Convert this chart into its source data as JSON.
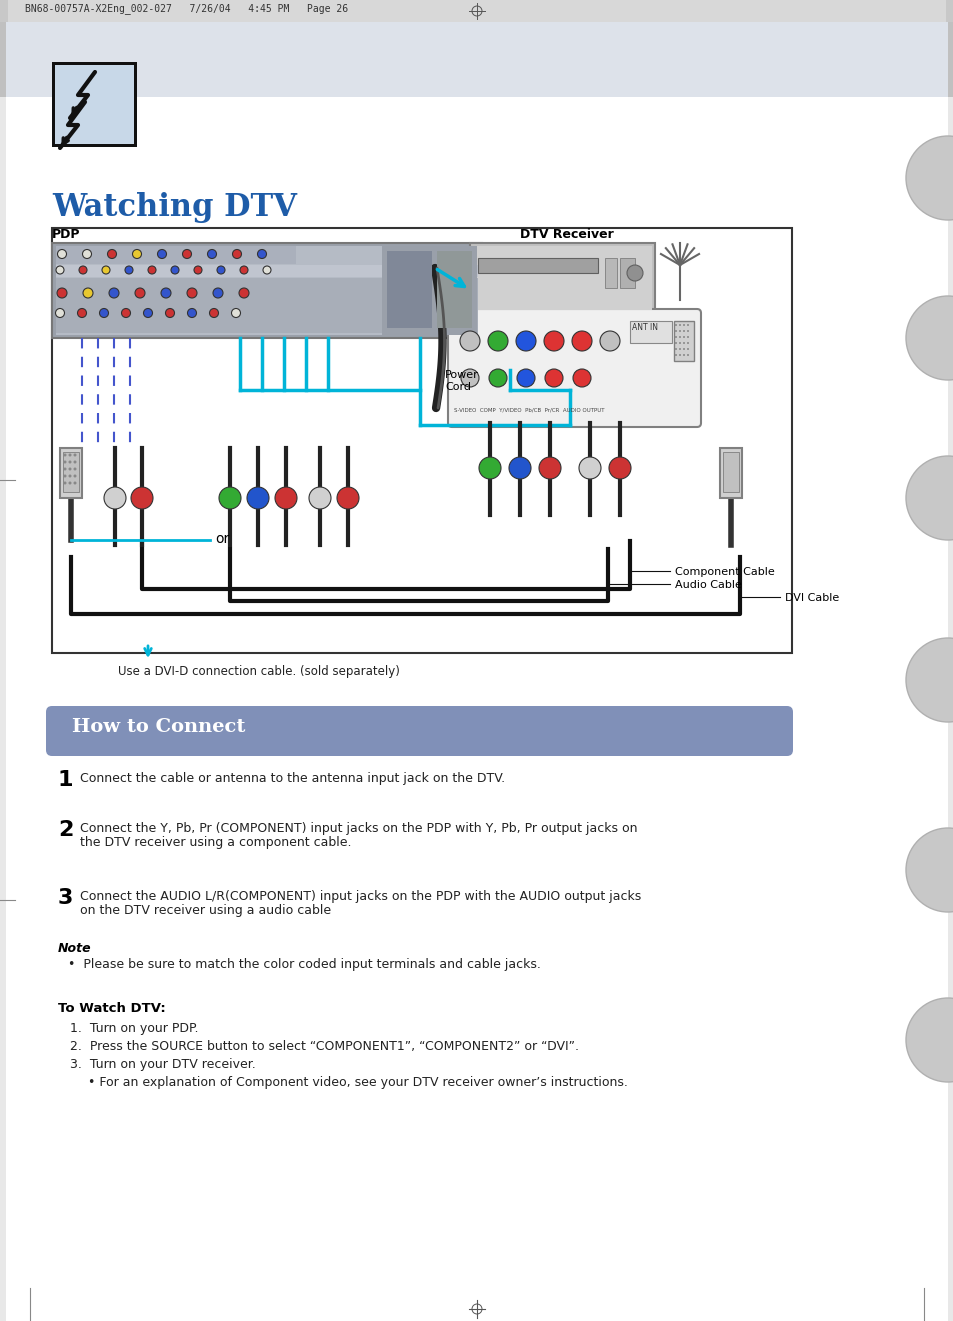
{
  "page_bg": "#ffffff",
  "header_text": "BN68-00757A-X2Eng_002-027   7/26/04   4:45 PM   Page 26",
  "title": "Watching DTV",
  "title_color": "#1e5ca8",
  "pdp_label": "PDP",
  "dtv_label": "DTV Receiver",
  "note_caption": "Use a DVI-D connection cable. (sold separately)",
  "how_to_connect_title": "How to Connect",
  "how_to_connect_bg": "#8090b8",
  "step1": "Connect the cable or antenna to the antenna input jack on the DTV.",
  "step2_line1": "Connect the Y, Pb, Pr (COMPONENT) input jacks on the PDP with Y, Pb, Pr output jacks on",
  "step2_line2": "the DTV receiver using a component cable.",
  "step3_line1": "Connect the AUDIO L/R(COMPONENT) input jacks on the PDP with the AUDIO output jacks",
  "step3_line2": "on the DTV receiver using a audio cable",
  "note_title": "Note",
  "note_bullet": "Please be sure to match the color coded input terminals and cable jacks.",
  "watch_dtv_title": "To Watch DTV:",
  "watch_step1": "Turn on your PDP.",
  "watch_step2": "Press the SOURCE button to select “COMPONENT1”, “COMPONENT2” or “DVI”.",
  "watch_step3": "Turn on your DTV receiver.",
  "watch_bullet": "For an explanation of Component video, see your DTV receiver owner’s instructions.",
  "or_text": "or",
  "component_cable": "Component Cable",
  "audio_cable": "Audio Cable",
  "dvi_cable": "DVI Cable",
  "power_cord": "Power\nCord",
  "cyan": "#00b4d8",
  "dash_blue": "#4455cc",
  "black": "#111111",
  "gray_light": "#d0d0d0",
  "gray_mid": "#b0b0b0",
  "gray_dark": "#888888"
}
